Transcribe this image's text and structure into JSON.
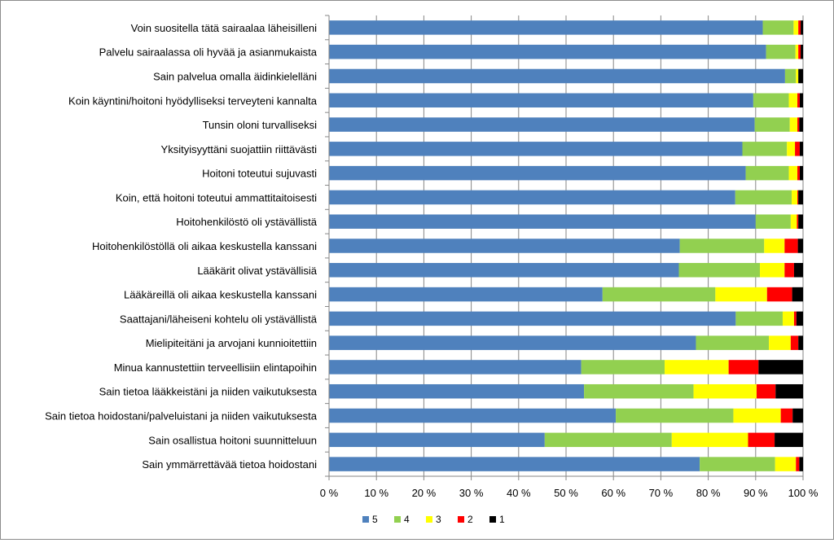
{
  "chart_data": {
    "type": "bar",
    "orientation": "horizontal",
    "stacked": true,
    "percent": true,
    "categories": [
      "Voin suositella tätä sairaalaa läheisilleni",
      "Palvelu sairaalassa oli hyvää ja asianmukaista",
      "Sain palvelua omalla äidinkielelläni",
      "Koin käyntini/hoitoni hyödylliseksi terveyteni kannalta",
      "Tunsin oloni turvalliseksi",
      "Yksityisyyttäni suojattiin riittävästi",
      "Hoitoni toteutui sujuvasti",
      "Koin, että hoitoni toteutui ammattitaitoisesti",
      "Hoitohenkilöstö oli ystävällistä",
      "Hoitohenkilöstöllä oli aikaa keskustella kanssani",
      "Lääkärit olivat ystävällisiä",
      "Lääkäreillä oli aikaa keskustella kanssani",
      "Saattajani/läheiseni kohtelu oli ystävällistä",
      "Mielipiteitäni ja arvojani kunnioitettiin",
      "Minua kannustettiin terveellisiin elintapoihin",
      "Sain tietoa lääkkeistäni ja niiden vaikutuksesta",
      "Sain tietoa hoidostani/palveluistani ja niiden vaikutuksesta",
      "Sain osallistua hoitoni suunnitteluun",
      "Sain ymmärrettävää tietoa hoidostani"
    ],
    "series": [
      {
        "name": "5",
        "color": "#4f81bd",
        "values": [
          91.5,
          92.2,
          96.2,
          89.5,
          89.8,
          87.2,
          87.9,
          85.7,
          90.0,
          74.0,
          73.8,
          57.7,
          85.8,
          77.4,
          53.2,
          53.8,
          60.5,
          45.5,
          78.2
        ]
      },
      {
        "name": "4",
        "color": "#92d050",
        "values": [
          6.5,
          6.2,
          2.3,
          7.5,
          7.4,
          9.4,
          9.1,
          11.9,
          7.4,
          17.8,
          17.1,
          23.8,
          9.9,
          15.4,
          17.6,
          23.1,
          24.8,
          26.8,
          15.9
        ]
      },
      {
        "name": "3",
        "color": "#ffff00",
        "values": [
          1.0,
          0.6,
          0.5,
          1.8,
          1.6,
          1.7,
          1.8,
          1.2,
          1.3,
          4.3,
          5.2,
          10.9,
          2.4,
          4.6,
          13.5,
          13.3,
          10.0,
          16.1,
          4.4
        ]
      },
      {
        "name": "2",
        "color": "#ff0000",
        "values": [
          0.5,
          0.5,
          0.0,
          0.5,
          0.4,
          1.0,
          0.5,
          0.2,
          0.3,
          2.8,
          2.0,
          5.3,
          0.5,
          1.6,
          6.3,
          4.0,
          2.5,
          5.6,
          0.7
        ]
      },
      {
        "name": "1",
        "color": "#000000",
        "values": [
          0.5,
          0.5,
          1.0,
          0.7,
          0.8,
          0.7,
          0.7,
          1.0,
          1.0,
          1.1,
          1.9,
          2.3,
          1.4,
          1.0,
          9.4,
          5.8,
          2.2,
          6.0,
          0.8
        ]
      }
    ],
    "xticks": [
      "0 %",
      "10 %",
      "20 %",
      "30 %",
      "40 %",
      "50 %",
      "60 %",
      "70 %",
      "80 %",
      "90 %",
      "100 %"
    ],
    "xlim": [
      0,
      100
    ],
    "grid": "vertical",
    "legend": "bottom-center"
  }
}
